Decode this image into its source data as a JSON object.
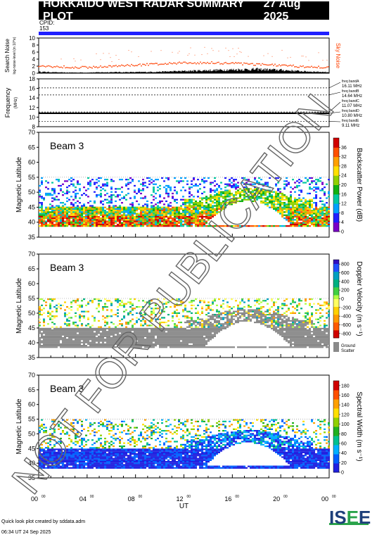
{
  "header": {
    "title": "HOKKAIDO WEST RADAR SUMMARY PLOT",
    "date": "27 Aug 2025"
  },
  "cpid": {
    "label": "CPID:",
    "value": "153"
  },
  "footer": {
    "line1": "Quick look plot created by sddata.adm",
    "line2": "06:34 UT 24 Sep 2025"
  },
  "logo": {
    "text_a": "IS",
    "text_b": "E",
    "text_c": "E"
  },
  "watermark": "NOT FOR PUBLICATION",
  "colors": {
    "cpid_bar": "#1f1fff",
    "noise_sky": "#ff4000",
    "ground_scatter": "#8a8a8a",
    "title_bg": "#000000"
  },
  "chart_data": [
    {
      "type": "area",
      "panel": "noise",
      "ylabel": "Search Noise",
      "ylabel_sub": "log-noise-level (in 10^e)",
      "right_label": "Sky Noise",
      "ylim": [
        0,
        10
      ],
      "yticks": [
        0,
        2,
        4,
        6,
        8,
        10
      ],
      "x": [
        0,
        2,
        4,
        6,
        8,
        10,
        12,
        14,
        16,
        18,
        20,
        22,
        24
      ],
      "sky_noise": [
        2.0,
        1.8,
        1.6,
        1.9,
        2.3,
        2.6,
        2.9,
        3.0,
        2.8,
        2.5,
        2.2,
        1.8,
        1.6
      ],
      "search_noise": [
        0.4,
        0.2,
        0.2,
        0.3,
        0.3,
        0.4,
        0.6,
        0.8,
        1.0,
        1.1,
        0.9,
        0.5,
        0.3
      ]
    },
    {
      "type": "line",
      "panel": "frequency",
      "ylabel": "Frequency",
      "ylabel_sub": "(MHz)",
      "ylim": [
        8,
        18
      ],
      "yticks": [
        8,
        10,
        12,
        14,
        16,
        18
      ],
      "bands": [
        {
          "label": "freq bandA",
          "value_text": "16.11 MHz",
          "mhz": 16.11
        },
        {
          "label": "freq bandB",
          "value_text": "14.64 MHz",
          "mhz": 14.64
        },
        {
          "label": "freq bandC",
          "value_text": "11.07 MHz",
          "mhz": 11.07
        },
        {
          "label": "freq bandD",
          "value_text": "10.80 MHz",
          "mhz": 10.8
        },
        {
          "label": "freq bandE",
          "value_text": "9.11 MHz",
          "mhz": 9.11
        }
      ],
      "operating_mhz": 10.8
    },
    {
      "type": "heatmap",
      "panel": "power",
      "beam_label": "Beam 3",
      "ylabel": "Magnetic Latitude",
      "ylim": [
        35,
        70
      ],
      "yticks": [
        35,
        40,
        45,
        50,
        55,
        60,
        65,
        70
      ],
      "colorbar_label": "Backscatter Power (dB)",
      "colorbar_ticks": [
        0,
        4,
        8,
        12,
        16,
        20,
        24,
        28,
        32,
        36
      ],
      "colorbar_range": [
        0,
        40
      ]
    },
    {
      "type": "heatmap",
      "panel": "velocity",
      "beam_label": "Beam 3",
      "ylabel": "Magnetic Latitude",
      "ylim": [
        35,
        70
      ],
      "yticks": [
        35,
        40,
        45,
        50,
        55,
        60,
        65,
        70
      ],
      "colorbar_label": "Doppler Velocity (m s⁻¹)",
      "colorbar_ticks": [
        -800,
        -600,
        -400,
        -200,
        0,
        200,
        400,
        600,
        800
      ],
      "colorbar_range": [
        -900,
        900
      ],
      "ground_scatter_label": "Ground Scatter"
    },
    {
      "type": "heatmap",
      "panel": "width",
      "beam_label": "Beam 3",
      "ylabel": "Magnetic Latitude",
      "ylim": [
        35,
        70
      ],
      "yticks": [
        35,
        40,
        45,
        50,
        55,
        60,
        65,
        70
      ],
      "colorbar_label": "Spectral Width (m s⁻¹)",
      "colorbar_ticks": [
        0,
        20,
        40,
        60,
        80,
        100,
        120,
        140,
        160,
        180
      ],
      "colorbar_range": [
        0,
        190
      ]
    },
    {
      "type": "axis",
      "panel": "time",
      "xlabel": "UT",
      "xlim": [
        0,
        24
      ],
      "xticks": [
        {
          "hour": 0,
          "label": "00",
          "sup": "00"
        },
        {
          "hour": 4,
          "label": "04",
          "sup": "00"
        },
        {
          "hour": 8,
          "label": "08",
          "sup": "00"
        },
        {
          "hour": 12,
          "label": "12",
          "sup": "00"
        },
        {
          "hour": 16,
          "label": "16",
          "sup": "00"
        },
        {
          "hour": 20,
          "label": "20",
          "sup": "00"
        },
        {
          "hour": 24,
          "label": "00",
          "sup": "00"
        }
      ]
    }
  ]
}
